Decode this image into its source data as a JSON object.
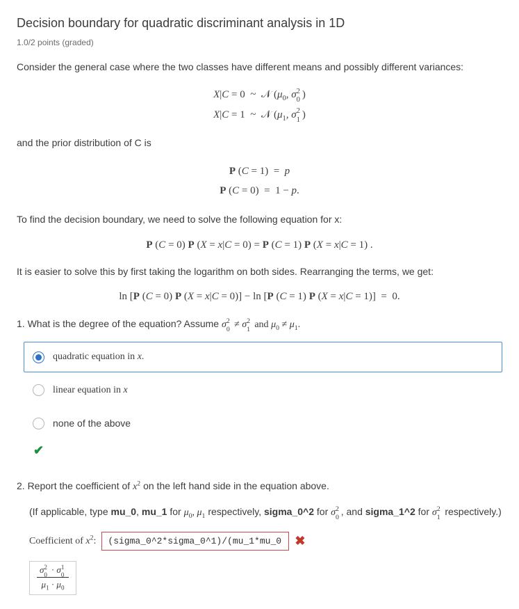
{
  "title": "Decision boundary for quadratic discriminant analysis in 1D",
  "points_label": "1.0/2 points (graded)",
  "intro": "Consider the general case where the two classes have different means and possibly different variances:",
  "prior_text": "and the prior distribution of C is",
  "boundary_intro": "To find the decision boundary, we need to solve the following equation for x:",
  "log_text": "It is easier to solve this by first taking the logarithm on both sides. Rearranging the terms, we get:",
  "q1": {
    "prompt_prefix": "1. What is the degree of the equation? Assume ",
    "opt_a": "quadratic equation in x.",
    "opt_b": "linear equation in x",
    "opt_c": "none of the above",
    "selected_index": 0
  },
  "q2": {
    "prompt": "2. Report the coefficient of x² on the left hand side in the equation above.",
    "hint_prefix": "(If applicable, type ",
    "coeff_label": "Coefficient of x²:",
    "input_value": "(sigma_0^2*sigma_0^1)/(mu_1*mu_0)",
    "status": "incorrect"
  },
  "colors": {
    "text": "#3c3c3c",
    "muted": "#6b6b6b",
    "accent": "#2d72c8",
    "correct": "#1e8e3e",
    "error": "#c0392b",
    "error_border": "#c94a4a",
    "option_border": "#4a90d9"
  }
}
